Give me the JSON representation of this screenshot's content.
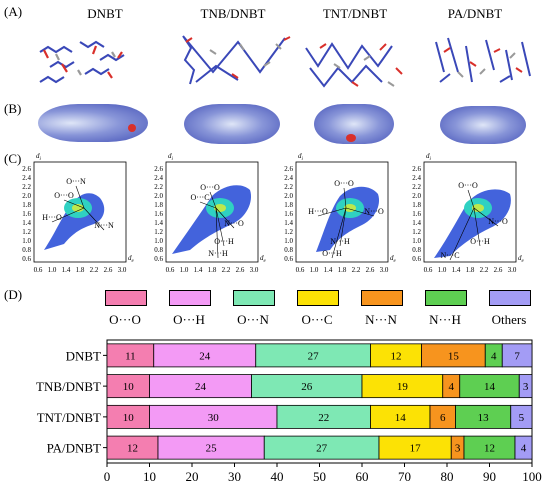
{
  "panel_labels": {
    "a": "(A)",
    "b": "(B)",
    "c": "(C)",
    "d": "(D)"
  },
  "columns": [
    "DNBT",
    "TNB/DNBT",
    "TNT/DNBT",
    "PA/DNBT"
  ],
  "fingerprint": {
    "axis_di": "d",
    "axis_di_sub": "i",
    "axis_de": "d",
    "axis_de_sub": "e",
    "y_ticks": [
      "2.6",
      "2.4",
      "2.2",
      "2.0",
      "1.8",
      "1.6",
      "1.4",
      "1.2",
      "1.0",
      "0.8",
      "0.6"
    ],
    "x_ticks": [
      "0.6",
      "1.0",
      "1.4",
      "1.8",
      "2.2",
      "2.6",
      "3.0"
    ],
    "annotations": [
      [
        "O···N",
        "O···O",
        "H···O",
        "N···N"
      ],
      [
        "O···O",
        "O···C",
        "N···O",
        "O···H",
        "N···H"
      ],
      [
        "O···O",
        "H···O",
        "N···O",
        "N···H",
        "O···H"
      ],
      [
        "O···O",
        "N···O",
        "O···H",
        "N···C"
      ]
    ]
  },
  "chart_data": {
    "type": "bar",
    "orientation": "horizontal",
    "stacked": true,
    "categories": [
      "DNBT",
      "TNB/DNBT",
      "TNT/DNBT",
      "PA/DNBT"
    ],
    "series": [
      {
        "name": "O···O",
        "color": "#f47eb0",
        "values": [
          11,
          10,
          10,
          12
        ]
      },
      {
        "name": "O···H",
        "color": "#f39af5",
        "values": [
          24,
          24,
          30,
          25
        ]
      },
      {
        "name": "O···N",
        "color": "#7ee8b4",
        "values": [
          27,
          26,
          22,
          27
        ]
      },
      {
        "name": "O···C",
        "color": "#fce205",
        "values": [
          12,
          19,
          14,
          17
        ]
      },
      {
        "name": "N···N",
        "color": "#f7941e",
        "values": [
          15,
          4,
          6,
          3
        ]
      },
      {
        "name": "N···H",
        "color": "#5ecf52",
        "values": [
          4,
          14,
          13,
          12
        ]
      },
      {
        "name": "Others",
        "color": "#a39cf5",
        "values": [
          7,
          3,
          5,
          4
        ]
      }
    ],
    "x_ticks": [
      0,
      10,
      20,
      30,
      40,
      50,
      60,
      70,
      80,
      90,
      100
    ],
    "xlim": [
      0,
      100
    ],
    "legend_position": "top"
  }
}
